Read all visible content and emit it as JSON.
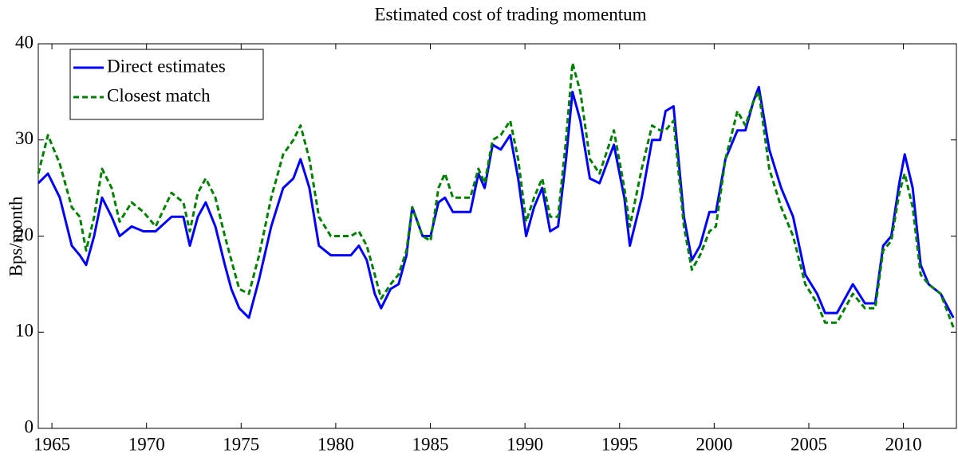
{
  "chart_data": {
    "type": "line",
    "title": "Estimated cost of trading momentum",
    "y_label": "Bps/month",
    "x": [
      1964.28,
      1964.79,
      1965.42,
      1966.05,
      1966.47,
      1966.81,
      1967.23,
      1967.65,
      1968.16,
      1968.58,
      1969.21,
      1969.84,
      1970.48,
      1971.32,
      1971.95,
      1972.29,
      1972.71,
      1973.13,
      1973.64,
      1974.14,
      1974.48,
      1974.9,
      1975.41,
      1975.95,
      1976.59,
      1977.22,
      1977.76,
      1978.14,
      1978.61,
      1979.11,
      1979.74,
      1980.8,
      1981.22,
      1981.64,
      1982.06,
      1982.4,
      1982.9,
      1983.32,
      1983.74,
      1984.04,
      1984.59,
      1985.01,
      1985.43,
      1985.77,
      1986.19,
      1987.11,
      1987.54,
      1987.87,
      1988.29,
      1988.72,
      1989.22,
      1989.64,
      1990.06,
      1990.48,
      1990.91,
      1991.33,
      1991.75,
      1992.17,
      1992.51,
      1992.93,
      1993.43,
      1993.94,
      1994.7,
      1995.25,
      1995.54,
      1996.17,
      1996.72,
      1997.14,
      1997.43,
      1997.85,
      1998.4,
      1998.82,
      1999.25,
      1999.75,
      2000.09,
      2000.59,
      2001.23,
      2001.65,
      2002.07,
      2002.36,
      2002.91,
      2003.54,
      2004.17,
      2004.81,
      2005.44,
      2005.86,
      2006.49,
      2007.33,
      2007.97,
      2008.51,
      2008.93,
      2009.36,
      2009.78,
      2010.07,
      2010.49,
      2010.91,
      2011.33,
      2011.97,
      2012.64
    ],
    "series": [
      {
        "name": "Direct estimates",
        "color": "#0000ff",
        "linestyle": "solid",
        "values": [
          25.5,
          26.5,
          24,
          19,
          18,
          17,
          20,
          24,
          22,
          20,
          21,
          20.5,
          20.5,
          22,
          22,
          19,
          22,
          23.5,
          21,
          17,
          14.5,
          12.5,
          11.5,
          15.5,
          21,
          25,
          26,
          28,
          25,
          19,
          18,
          18,
          19,
          17.5,
          14,
          12.5,
          14.5,
          15,
          18,
          23,
          20,
          20,
          23.5,
          24,
          22.5,
          22.5,
          26.5,
          25,
          29.5,
          29,
          30.5,
          26,
          20,
          23,
          25,
          20.5,
          21,
          28,
          35,
          32,
          26,
          25.5,
          29.5,
          24,
          19,
          24,
          30,
          30,
          33,
          33.5,
          22,
          17.5,
          19,
          22.5,
          22.5,
          28,
          31,
          31,
          34,
          35.5,
          29,
          25,
          22,
          16,
          14,
          12,
          12,
          15,
          13,
          13,
          19,
          20,
          25.5,
          28.5,
          25,
          17,
          15,
          14,
          11.5
        ]
      },
      {
        "name": "Closest match",
        "color": "#008000",
        "linestyle": "dashed",
        "values": [
          26.5,
          30.5,
          27.5,
          23,
          22,
          18.5,
          22,
          27,
          25,
          21.5,
          23.5,
          22.5,
          21,
          24.5,
          23.5,
          20.5,
          24.5,
          26,
          24,
          20,
          17.5,
          14.5,
          14,
          18,
          24,
          28.5,
          30,
          31.5,
          28,
          22,
          20,
          20,
          20.5,
          19,
          16,
          13.5,
          15,
          16,
          18.5,
          23,
          20,
          19.5,
          25,
          26.5,
          24,
          24,
          27,
          25.5,
          30,
          30.5,
          32,
          28,
          21.5,
          24,
          26,
          22,
          22,
          30,
          38,
          35,
          28,
          26.5,
          31,
          25,
          21,
          27,
          31.5,
          31,
          31,
          32,
          21,
          16.5,
          18,
          20.5,
          21,
          28,
          33,
          31.5,
          34,
          35,
          27,
          23,
          20,
          15,
          13,
          11,
          11,
          14,
          12.5,
          12.5,
          18.5,
          19.5,
          24.5,
          26.5,
          23,
          16,
          15,
          14,
          10.5
        ]
      }
    ],
    "xlim": [
      1964.28,
      2012.8
    ],
    "ylim": [
      0,
      40
    ],
    "xticks": [
      1965,
      1970,
      1975,
      1980,
      1985,
      1990,
      1995,
      2000,
      2005,
      2010
    ],
    "yticks": [
      0,
      10,
      20,
      30,
      40
    ],
    "legend": "upper left"
  }
}
